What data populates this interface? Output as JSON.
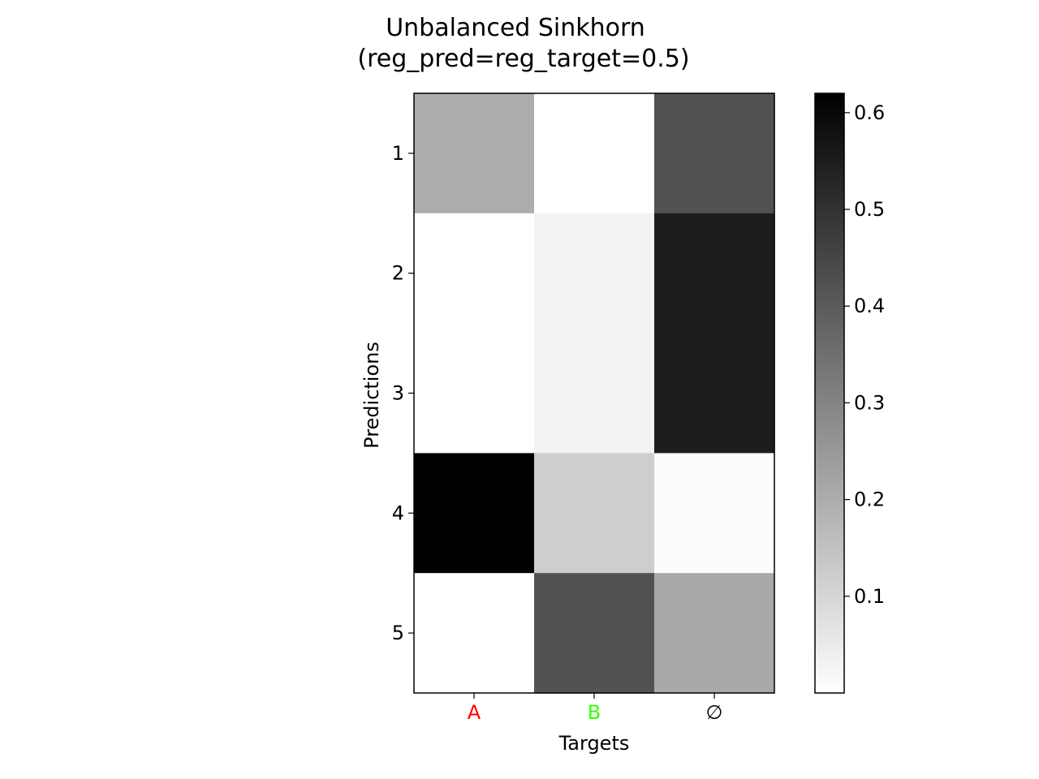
{
  "chart_data": {
    "type": "heatmap",
    "title": "Unbalanced Sinkhorn",
    "subtitle": "(reg_pred=reg_target=0.5)",
    "xlabel": "Targets",
    "ylabel": "Predictions",
    "x_categories": [
      "A",
      "B",
      "∅"
    ],
    "x_category_colors": [
      "#ff0000",
      "#33ff00",
      "#000000"
    ],
    "y_categories": [
      "1",
      "2",
      "3",
      "4",
      "5"
    ],
    "values": [
      [
        0.2,
        0.0,
        0.42
      ],
      [
        0.0,
        0.03,
        0.55
      ],
      [
        0.0,
        0.03,
        0.55
      ],
      [
        0.62,
        0.12,
        0.01
      ],
      [
        0.0,
        0.42,
        0.21
      ]
    ],
    "colormap": "gray_r",
    "colorbar": {
      "vmin": 0.0,
      "vmax": 0.62,
      "ticks": [
        0.1,
        0.2,
        0.3,
        0.4,
        0.5,
        0.6
      ],
      "tick_labels": [
        "0.1",
        "0.2",
        "0.3",
        "0.4",
        "0.5",
        "0.6"
      ]
    }
  }
}
